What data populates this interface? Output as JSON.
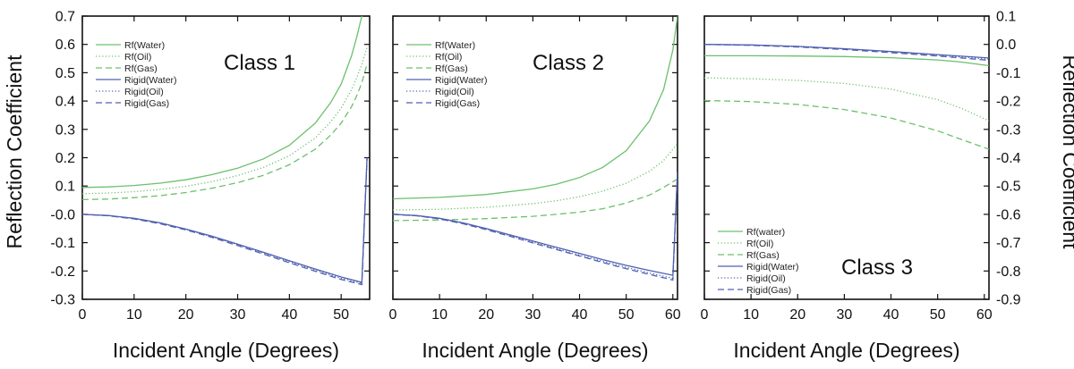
{
  "figure": {
    "left_axis_label": "Reflection Coefficient",
    "right_axis_label": "Reflection Coefficient",
    "colors": {
      "green": "#6cc06c",
      "blue": "#5060b0",
      "axis": "#111111"
    }
  },
  "chart_data": [
    {
      "type": "line",
      "title": "Class 1",
      "xlabel": "Incident Angle (Degrees)",
      "ylabel": "Reflection Coefficient",
      "xlim": [
        0,
        55.5
      ],
      "ylim": [
        -0.3,
        0.7
      ],
      "xticks": [
        0,
        10,
        20,
        30,
        40,
        50
      ],
      "yticks": [
        -0.3,
        -0.2,
        -0.1,
        0.0,
        0.1,
        0.2,
        0.3,
        0.4,
        0.5,
        0.6,
        0.7
      ],
      "ytick_labels": [
        "-0.3",
        "-0.2",
        "-0.1",
        "-0.0",
        "0.1",
        "0.2",
        "0.3",
        "0.4",
        "0.5",
        "0.6",
        "0.7"
      ],
      "legend_position": "top-left",
      "series": [
        {
          "name": "Rf(Water)",
          "color": "#6cc06c",
          "style": "solid",
          "x": [
            0,
            5,
            10,
            15,
            20,
            25,
            30,
            35,
            40,
            45,
            48,
            50,
            52,
            53,
            54,
            54.5
          ],
          "y": [
            0.095,
            0.097,
            0.102,
            0.11,
            0.122,
            0.14,
            0.163,
            0.196,
            0.244,
            0.322,
            0.395,
            0.46,
            0.56,
            0.625,
            0.7,
            0.74
          ]
        },
        {
          "name": "Rf(Oil)",
          "color": "#6cc06c",
          "style": "dotted",
          "x": [
            0,
            5,
            10,
            15,
            20,
            25,
            30,
            35,
            40,
            45,
            48,
            50,
            52,
            53,
            54,
            55
          ],
          "y": [
            0.073,
            0.075,
            0.08,
            0.088,
            0.099,
            0.115,
            0.137,
            0.166,
            0.207,
            0.27,
            0.327,
            0.375,
            0.44,
            0.482,
            0.53,
            0.59
          ]
        },
        {
          "name": "Rf(Gas)",
          "color": "#6cc06c",
          "style": "dashed",
          "x": [
            0,
            5,
            10,
            15,
            20,
            25,
            30,
            35,
            40,
            45,
            48,
            50,
            52,
            53,
            54,
            55
          ],
          "y": [
            0.052,
            0.054,
            0.059,
            0.066,
            0.077,
            0.092,
            0.112,
            0.138,
            0.175,
            0.23,
            0.28,
            0.322,
            0.38,
            0.418,
            0.465,
            0.53
          ]
        },
        {
          "name": "Rigid(Water)",
          "color": "#5060b0",
          "style": "solid",
          "x": [
            0,
            5,
            10,
            15,
            20,
            25,
            30,
            35,
            40,
            45,
            50,
            54,
            55
          ],
          "y": [
            0.0,
            -0.004,
            -0.014,
            -0.03,
            -0.052,
            -0.077,
            -0.105,
            -0.134,
            -0.164,
            -0.193,
            -0.221,
            -0.24,
            0.2
          ]
        },
        {
          "name": "Rigid(Oil)",
          "color": "#5060b0",
          "style": "dotted",
          "x": [
            0,
            5,
            10,
            15,
            20,
            25,
            30,
            35,
            40,
            45,
            50,
            54,
            55
          ],
          "y": [
            0.0,
            -0.004,
            -0.015,
            -0.031,
            -0.053,
            -0.079,
            -0.107,
            -0.137,
            -0.167,
            -0.197,
            -0.226,
            -0.244,
            0.2
          ]
        },
        {
          "name": "Rigid(Gas)",
          "color": "#5060b0",
          "style": "dashed",
          "x": [
            0,
            5,
            10,
            15,
            20,
            25,
            30,
            35,
            40,
            45,
            50,
            54,
            55
          ],
          "y": [
            0.0,
            -0.005,
            -0.016,
            -0.033,
            -0.055,
            -0.081,
            -0.11,
            -0.14,
            -0.171,
            -0.201,
            -0.23,
            -0.248,
            0.2
          ]
        }
      ]
    },
    {
      "type": "line",
      "title": "Class 2",
      "xlabel": "Incident Angle (Degrees)",
      "ylabel": "",
      "xlim": [
        0,
        61
      ],
      "ylim": [
        -0.3,
        0.7
      ],
      "xticks": [
        0,
        10,
        20,
        30,
        40,
        50,
        60
      ],
      "yticks": [
        -0.3,
        -0.2,
        -0.1,
        0.0,
        0.1,
        0.2,
        0.3,
        0.4,
        0.5,
        0.6,
        0.7
      ],
      "legend_position": "top-left",
      "series": [
        {
          "name": "Rf(Water)",
          "color": "#6cc06c",
          "style": "solid",
          "x": [
            0,
            10,
            20,
            30,
            35,
            40,
            45,
            50,
            55,
            58,
            60,
            61
          ],
          "y": [
            0.055,
            0.06,
            0.07,
            0.09,
            0.106,
            0.13,
            0.166,
            0.225,
            0.33,
            0.44,
            0.58,
            0.7
          ]
        },
        {
          "name": "Rf(Oil)",
          "color": "#6cc06c",
          "style": "dotted",
          "x": [
            0,
            10,
            20,
            30,
            35,
            40,
            45,
            50,
            55,
            58,
            60,
            61
          ],
          "y": [
            0.015,
            0.018,
            0.025,
            0.038,
            0.048,
            0.062,
            0.082,
            0.11,
            0.152,
            0.19,
            0.23,
            0.25
          ]
        },
        {
          "name": "Rf(Gas)",
          "color": "#6cc06c",
          "style": "dashed",
          "x": [
            0,
            10,
            20,
            30,
            35,
            40,
            45,
            50,
            55,
            58,
            60,
            61
          ],
          "y": [
            -0.022,
            -0.02,
            -0.015,
            -0.007,
            0.0,
            0.008,
            0.02,
            0.04,
            0.068,
            0.095,
            0.115,
            0.125
          ]
        },
        {
          "name": "Rigid(Water)",
          "color": "#5060b0",
          "style": "solid",
          "x": [
            0,
            5,
            10,
            15,
            20,
            25,
            30,
            35,
            40,
            45,
            50,
            55,
            60,
            61
          ],
          "y": [
            0.0,
            -0.004,
            -0.014,
            -0.03,
            -0.05,
            -0.072,
            -0.094,
            -0.116,
            -0.138,
            -0.16,
            -0.18,
            -0.198,
            -0.215,
            0.15
          ]
        },
        {
          "name": "Rigid(Oil)",
          "color": "#5060b0",
          "style": "dotted",
          "x": [
            0,
            5,
            10,
            15,
            20,
            25,
            30,
            35,
            40,
            45,
            50,
            55,
            60,
            61
          ],
          "y": [
            0.0,
            -0.005,
            -0.015,
            -0.032,
            -0.052,
            -0.075,
            -0.098,
            -0.121,
            -0.144,
            -0.166,
            -0.187,
            -0.207,
            -0.226,
            0.15
          ]
        },
        {
          "name": "Rigid(Gas)",
          "color": "#5060b0",
          "style": "dashed",
          "x": [
            0,
            5,
            10,
            15,
            20,
            25,
            30,
            35,
            40,
            45,
            50,
            55,
            60,
            61
          ],
          "y": [
            0.0,
            -0.005,
            -0.016,
            -0.033,
            -0.054,
            -0.077,
            -0.101,
            -0.124,
            -0.147,
            -0.17,
            -0.192,
            -0.212,
            -0.232,
            0.15
          ]
        }
      ]
    },
    {
      "type": "line",
      "title": "Class 3",
      "xlabel": "Incident Angle (Degrees)",
      "ylabel": "Reflection Coefficient",
      "xlim": [
        0,
        61
      ],
      "ylim": [
        -0.9,
        0.1
      ],
      "xticks": [
        0,
        10,
        20,
        30,
        40,
        50,
        60
      ],
      "yticks": [
        -0.9,
        -0.8,
        -0.7,
        -0.6,
        -0.5,
        -0.4,
        -0.3,
        -0.2,
        -0.1,
        0.0,
        0.1
      ],
      "ytick_labels": [
        "-0.9",
        "-0.8",
        "-0.7",
        "-0.6",
        "-0.5",
        "-0.4",
        "-0.3",
        "-0.2",
        "-0.1",
        "0.0",
        "0.1"
      ],
      "yaxis_side": "right",
      "legend_position": "bottom-left",
      "series": [
        {
          "name": "Rf(water)",
          "color": "#6cc06c",
          "style": "solid",
          "x": [
            0,
            10,
            20,
            30,
            40,
            50,
            55,
            61
          ],
          "y": [
            -0.04,
            -0.04,
            -0.041,
            -0.043,
            -0.047,
            -0.055,
            -0.062,
            -0.075
          ]
        },
        {
          "name": "Rf(Oil)",
          "color": "#6cc06c",
          "style": "dotted",
          "x": [
            0,
            10,
            20,
            30,
            40,
            50,
            55,
            61
          ],
          "y": [
            -0.118,
            -0.121,
            -0.127,
            -0.138,
            -0.158,
            -0.195,
            -0.225,
            -0.27
          ]
        },
        {
          "name": "Rf(Gas)",
          "color": "#6cc06c",
          "style": "dashed",
          "x": [
            0,
            10,
            20,
            30,
            40,
            50,
            55,
            61
          ],
          "y": [
            -0.198,
            -0.202,
            -0.212,
            -0.23,
            -0.26,
            -0.305,
            -0.335,
            -0.37
          ]
        },
        {
          "name": "Rigid(Water)",
          "color": "#5060b0",
          "style": "solid",
          "x": [
            0,
            10,
            20,
            30,
            40,
            50,
            61
          ],
          "y": [
            0.0,
            -0.002,
            -0.007,
            -0.015,
            -0.025,
            -0.036,
            -0.048
          ]
        },
        {
          "name": "Rigid(Oil)",
          "color": "#5060b0",
          "style": "dotted",
          "x": [
            0,
            10,
            20,
            30,
            40,
            50,
            61
          ],
          "y": [
            0.0,
            -0.002,
            -0.008,
            -0.016,
            -0.026,
            -0.038,
            -0.052
          ]
        },
        {
          "name": "Rigid(Gas)",
          "color": "#5060b0",
          "style": "dashed",
          "x": [
            0,
            10,
            20,
            30,
            40,
            50,
            61
          ],
          "y": [
            0.0,
            -0.003,
            -0.009,
            -0.018,
            -0.029,
            -0.041,
            -0.056
          ]
        }
      ]
    }
  ]
}
